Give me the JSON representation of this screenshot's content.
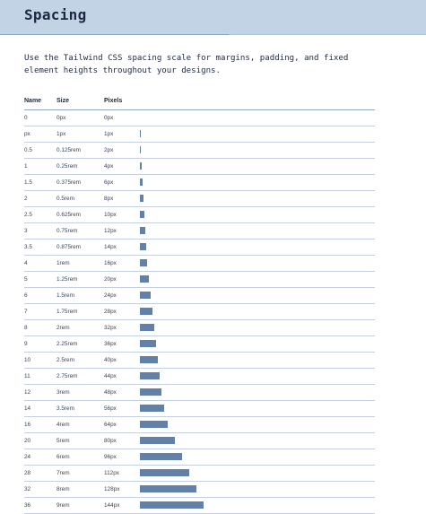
{
  "page": {
    "title": "Spacing",
    "description": "Use the Tailwind CSS spacing scale for margins, padding, and fixed element heights throughout your designs."
  },
  "table": {
    "headers": {
      "name": "Name",
      "size": "Size",
      "pixels": "Pixels"
    },
    "rows": [
      {
        "name": "0",
        "size": "0px",
        "pixels": "0px",
        "value": 0
      },
      {
        "name": "px",
        "size": "1px",
        "pixels": "1px",
        "value": 1
      },
      {
        "name": "0.5",
        "size": "0.125rem",
        "pixels": "2px",
        "value": 2
      },
      {
        "name": "1",
        "size": "0.25rem",
        "pixels": "4px",
        "value": 4
      },
      {
        "name": "1.5",
        "size": "0.375rem",
        "pixels": "6px",
        "value": 6
      },
      {
        "name": "2",
        "size": "0.5rem",
        "pixels": "8px",
        "value": 8
      },
      {
        "name": "2.5",
        "size": "0.625rem",
        "pixels": "10px",
        "value": 10
      },
      {
        "name": "3",
        "size": "0.75rem",
        "pixels": "12px",
        "value": 12
      },
      {
        "name": "3.5",
        "size": "0.875rem",
        "pixels": "14px",
        "value": 14
      },
      {
        "name": "4",
        "size": "1rem",
        "pixels": "16px",
        "value": 16
      },
      {
        "name": "5",
        "size": "1.25rem",
        "pixels": "20px",
        "value": 20
      },
      {
        "name": "6",
        "size": "1.5rem",
        "pixels": "24px",
        "value": 24
      },
      {
        "name": "7",
        "size": "1.75rem",
        "pixels": "28px",
        "value": 28
      },
      {
        "name": "8",
        "size": "2rem",
        "pixels": "32px",
        "value": 32
      },
      {
        "name": "9",
        "size": "2.25rem",
        "pixels": "36px",
        "value": 36
      },
      {
        "name": "10",
        "size": "2.5rem",
        "pixels": "40px",
        "value": 40
      },
      {
        "name": "11",
        "size": "2.75rem",
        "pixels": "44px",
        "value": 44
      },
      {
        "name": "12",
        "size": "3rem",
        "pixels": "48px",
        "value": 48
      },
      {
        "name": "14",
        "size": "3.5rem",
        "pixels": "56px",
        "value": 56
      },
      {
        "name": "16",
        "size": "4rem",
        "pixels": "64px",
        "value": 64
      },
      {
        "name": "20",
        "size": "5rem",
        "pixels": "80px",
        "value": 80
      },
      {
        "name": "24",
        "size": "6rem",
        "pixels": "96px",
        "value": 96
      },
      {
        "name": "28",
        "size": "7rem",
        "pixels": "112px",
        "value": 112
      },
      {
        "name": "32",
        "size": "8rem",
        "pixels": "128px",
        "value": 128
      },
      {
        "name": "36",
        "size": "9rem",
        "pixels": "144px",
        "value": 144
      }
    ]
  },
  "colors": {
    "header_bg": "#c3d3e6",
    "bar": "#6280a8",
    "row_rule": "#c4d0df"
  }
}
